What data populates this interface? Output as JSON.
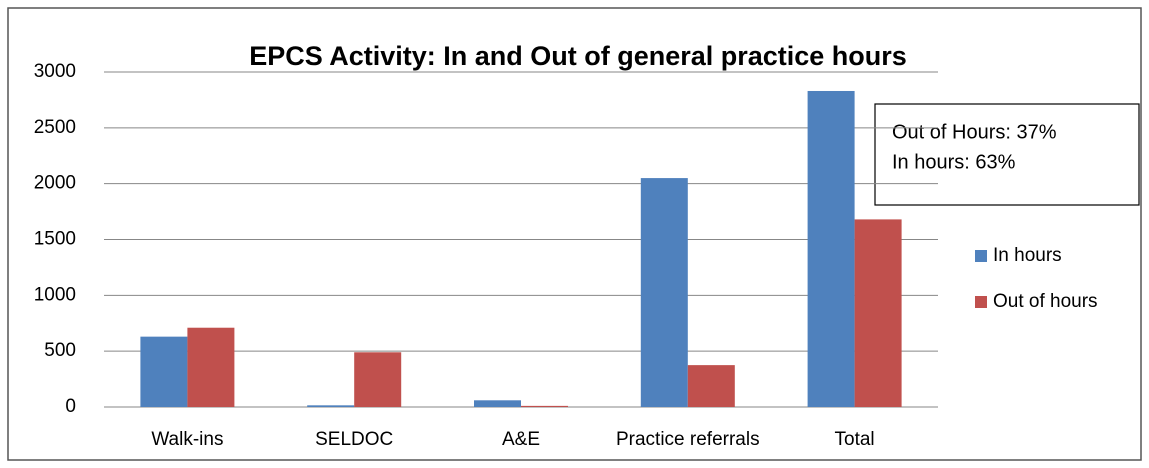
{
  "chart_data": {
    "type": "bar",
    "title": "EPCS Activity: In and Out of general practice hours",
    "categories": [
      "Walk-ins",
      "SELDOC",
      "A&E",
      "Practice referrals",
      "Total"
    ],
    "series": [
      {
        "name": "In hours",
        "color": "#4f81bd",
        "values": [
          630,
          15,
          60,
          2050,
          2830
        ]
      },
      {
        "name": "Out of hours",
        "color": "#c0504d",
        "values": [
          710,
          490,
          10,
          375,
          1680
        ]
      }
    ],
    "ylim": [
      0,
      3000
    ],
    "yticks": [
      0,
      500,
      1000,
      1500,
      2000,
      2500,
      3000
    ],
    "grid": true,
    "legend": "right",
    "annotations": [
      "Out of Hours: 37%",
      "In hours: 63%"
    ]
  }
}
